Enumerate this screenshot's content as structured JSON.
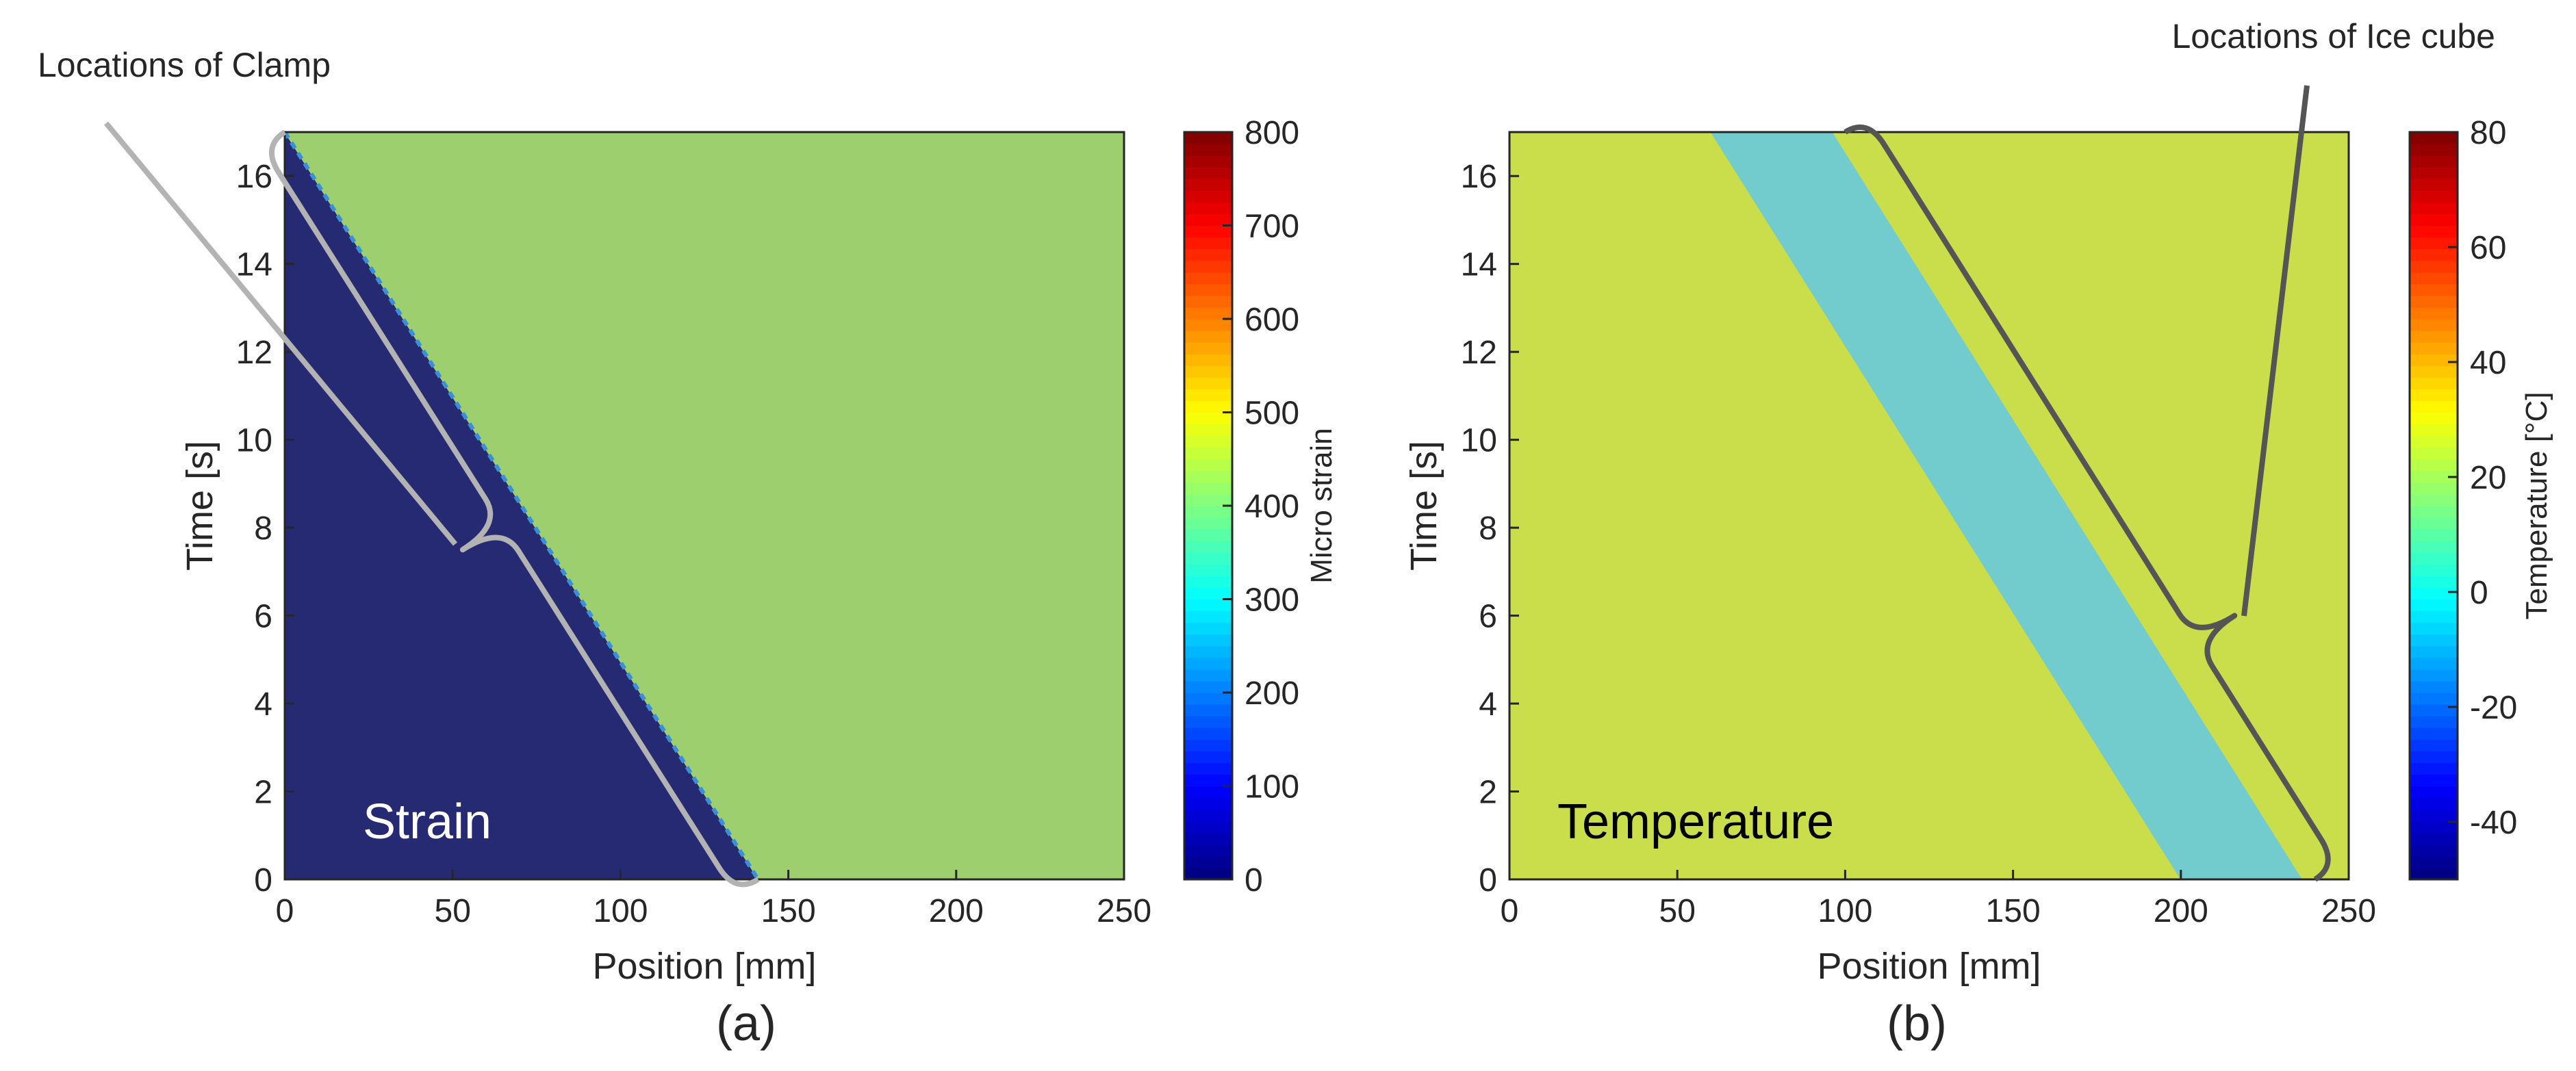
{
  "figure": {
    "annotations": {
      "clamp": "Locations of Clamp",
      "ice": "Locations of Ice cube"
    }
  },
  "chart_data": [
    {
      "type": "heatmap",
      "panel_label": "(a)",
      "inset_label": "Strain",
      "xlabel": "Position [mm]",
      "ylabel": "Time [s]",
      "xlim": [
        0,
        250
      ],
      "ylim": [
        0,
        17
      ],
      "xticks": [
        0,
        50,
        100,
        150,
        200,
        250
      ],
      "yticks": [
        0,
        2,
        4,
        6,
        8,
        10,
        12,
        14,
        16
      ],
      "grid": false,
      "colorbar": {
        "label": "Micro strain",
        "colormap": "jet",
        "range": [
          0,
          800
        ],
        "ticks": [
          0,
          100,
          200,
          300,
          400,
          500,
          600,
          700,
          800
        ]
      },
      "regions": [
        {
          "value": 0,
          "color": "#262a72",
          "polygon": [
            [
              0,
              0
            ],
            [
              0,
              17
            ],
            [
              141,
              0
            ]
          ]
        },
        {
          "value": 410,
          "color": "#9dcf6f",
          "polygon": [
            [
              0,
              17
            ],
            [
              250,
              17
            ],
            [
              250,
              0
            ],
            [
              141,
              0
            ]
          ]
        }
      ],
      "boundary_color": "#3a8fd6",
      "bracket": {
        "color": "#b3b3b3",
        "from": [
          0,
          17
        ],
        "to": [
          141,
          0
        ],
        "tip": [
          53,
          7.5
        ]
      }
    },
    {
      "type": "heatmap",
      "panel_label": "(b)",
      "inset_label": "Temperature",
      "xlabel": "Position [mm]",
      "ylabel": "Time [s]",
      "xlim": [
        0,
        250
      ],
      "ylim": [
        0,
        17
      ],
      "xticks": [
        0,
        50,
        100,
        150,
        200,
        250
      ],
      "yticks": [
        0,
        2,
        4,
        6,
        8,
        10,
        12,
        14,
        16
      ],
      "grid": false,
      "colorbar": {
        "label": "Temperature [°C]",
        "colormap": "jet",
        "range": [
          -50,
          80
        ],
        "ticks": [
          -40,
          -20,
          0,
          20,
          40,
          60,
          80
        ]
      },
      "regions": [
        {
          "value": 24,
          "color": "#cadd4b",
          "polygon": [
            [
              0,
              0
            ],
            [
              0,
              17
            ],
            [
              250,
              17
            ],
            [
              250,
              0
            ]
          ]
        },
        {
          "value": 3,
          "color": "#72cbcc",
          "polygon": [
            [
              60,
              17
            ],
            [
              96,
              17
            ],
            [
              236,
              0
            ],
            [
              200,
              0
            ]
          ]
        }
      ],
      "bracket": {
        "color": "#555555",
        "from": [
          100,
          17
        ],
        "to": [
          240,
          0
        ],
        "tip": [
          216,
          6
        ]
      }
    }
  ]
}
